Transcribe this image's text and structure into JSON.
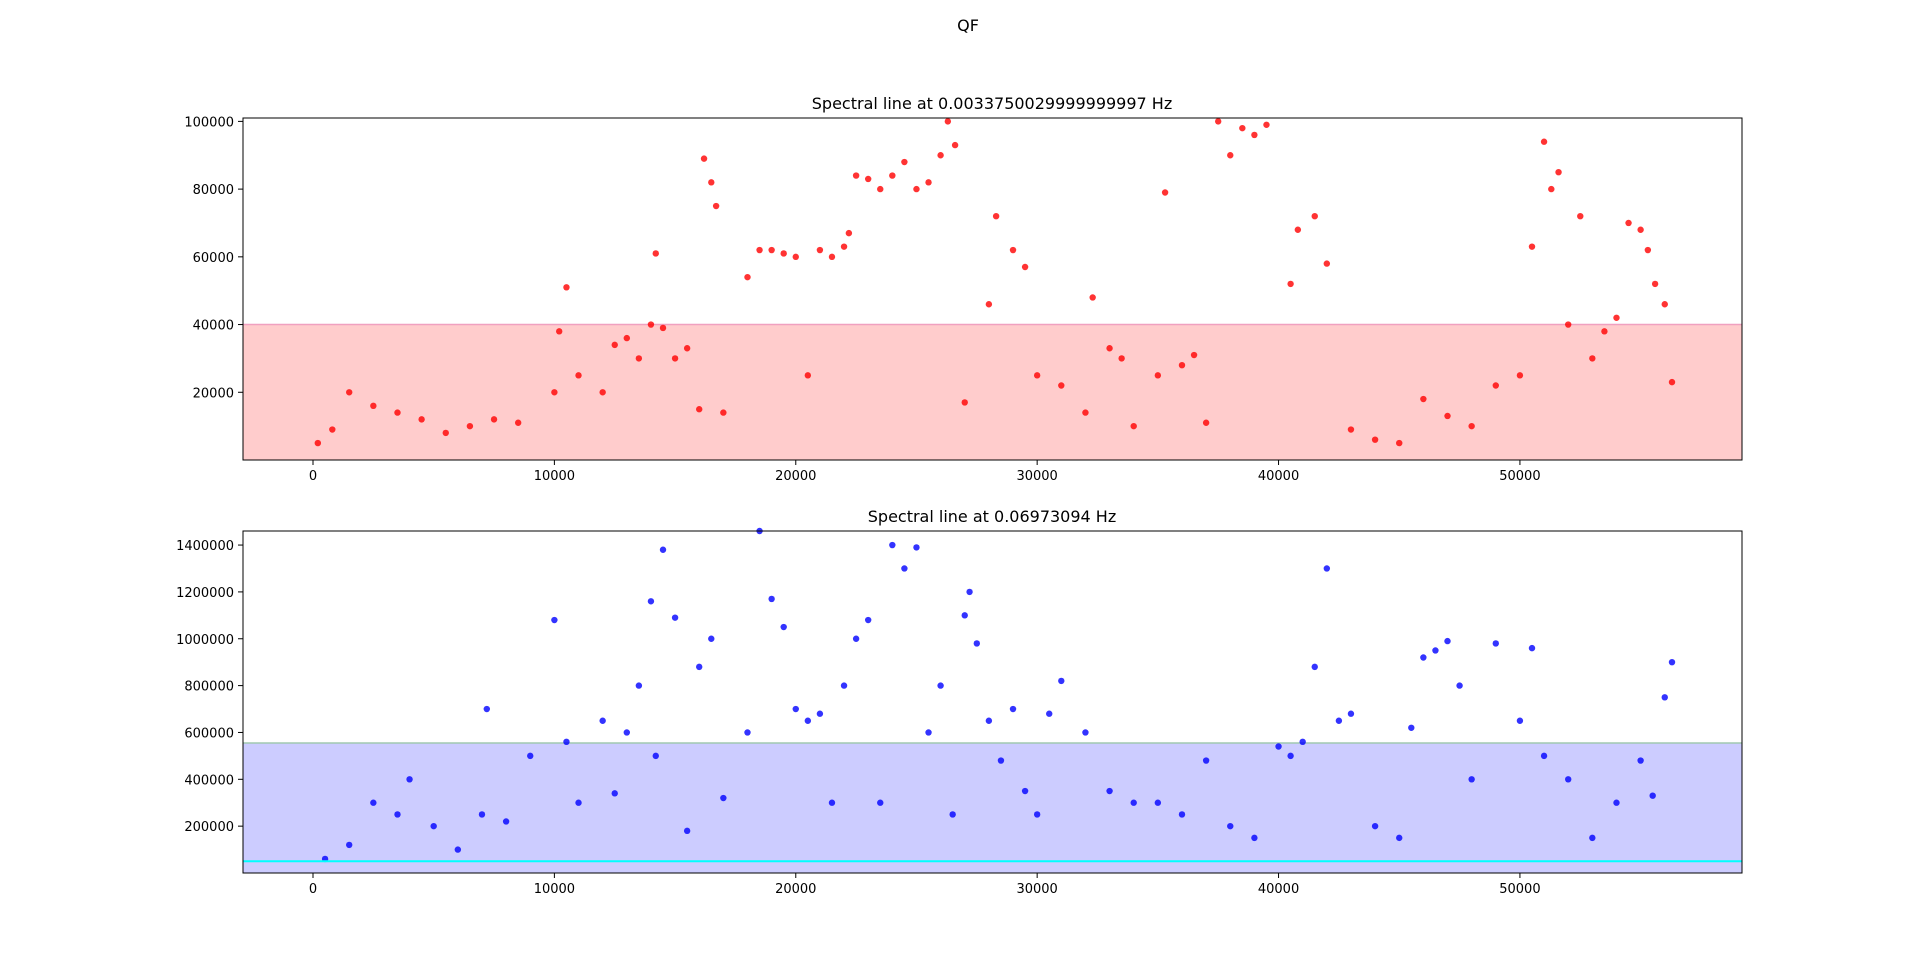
{
  "figure": {
    "suptitle": "QF"
  },
  "chart_data": [
    {
      "type": "scatter",
      "title": "Spectral line at 0.0033750029999999997 Hz",
      "xlabel": "",
      "ylabel": "",
      "xlim": [
        -2900,
        59200
      ],
      "ylim": [
        0,
        101000
      ],
      "xticks": [
        0,
        10000,
        20000,
        30000,
        40000,
        50000
      ],
      "xtick_labels": [
        "0",
        "10000",
        "20000",
        "30000",
        "40000",
        "50000"
      ],
      "yticks": [
        20000,
        40000,
        60000,
        80000,
        100000
      ],
      "ytick_labels": [
        "20000",
        "40000",
        "60000",
        "80000",
        "100000"
      ],
      "point_color": "#ff0000",
      "band": {
        "from": 0,
        "to": 40000,
        "color": "#ffcccc",
        "edge_color": "#f0a0c0"
      },
      "grid": false,
      "series": [
        {
          "x": [
            200,
            800,
            1500,
            2500,
            3500,
            4500,
            5500,
            6500,
            7500,
            8500,
            10000,
            10200,
            10500,
            11000,
            12000,
            12500,
            13000,
            13500,
            14000,
            14200,
            14500,
            15000,
            15500,
            16000,
            16200,
            16500,
            16700,
            17000,
            18000,
            18500,
            19000,
            19500,
            20000,
            20500,
            21000,
            21500,
            22000,
            22200,
            22500,
            23000,
            23500,
            24000,
            24500,
            25000,
            25500,
            26000,
            26300,
            26600,
            27000,
            28000,
            28300,
            29000,
            29500,
            30000,
            31000,
            32000,
            32300,
            33000,
            33500,
            34000,
            35000,
            35300,
            36000,
            36500,
            37000,
            37500,
            38000,
            38500,
            39000,
            39500,
            40500,
            40800,
            41500,
            42000,
            43000,
            44000,
            45000,
            46000,
            47000,
            48000,
            49000,
            50000,
            50500,
            51000,
            51300,
            51600,
            52000,
            52500,
            53000,
            53500,
            54000,
            54500,
            55000,
            55300,
            55600,
            56000,
            56300
          ],
          "y": [
            5000,
            9000,
            20000,
            16000,
            14000,
            12000,
            8000,
            10000,
            12000,
            11000,
            20000,
            38000,
            51000,
            25000,
            20000,
            34000,
            36000,
            30000,
            40000,
            61000,
            39000,
            30000,
            33000,
            15000,
            89000,
            82000,
            75000,
            14000,
            54000,
            62000,
            62000,
            61000,
            60000,
            25000,
            62000,
            60000,
            63000,
            67000,
            84000,
            83000,
            80000,
            84000,
            88000,
            80000,
            82000,
            90000,
            100000,
            93000,
            17000,
            46000,
            72000,
            62000,
            57000,
            25000,
            22000,
            14000,
            48000,
            33000,
            30000,
            10000,
            25000,
            79000,
            28000,
            31000,
            11000,
            100000,
            90000,
            98000,
            96000,
            99000,
            52000,
            68000,
            72000,
            58000,
            9000,
            6000,
            5000,
            18000,
            13000,
            10000,
            22000,
            25000,
            63000,
            94000,
            80000,
            85000,
            40000,
            72000,
            30000,
            38000,
            42000,
            70000,
            68000,
            62000,
            52000,
            46000,
            23000
          ]
        }
      ]
    },
    {
      "type": "scatter",
      "title": "Spectral line at 0.06973094 Hz",
      "xlabel": "",
      "ylabel": "",
      "xlim": [
        -2900,
        59200
      ],
      "ylim": [
        0,
        1460000
      ],
      "xticks": [
        0,
        10000,
        20000,
        30000,
        40000,
        50000
      ],
      "xtick_labels": [
        "0",
        "10000",
        "20000",
        "30000",
        "40000",
        "50000"
      ],
      "yticks": [
        200000,
        400000,
        600000,
        800000,
        1000000,
        1200000,
        1400000
      ],
      "ytick_labels": [
        "200000",
        "400000",
        "600000",
        "800000",
        "1000000",
        "1200000",
        "1400000"
      ],
      "point_color": "#0000ff",
      "band": {
        "from": 0,
        "to": 555000,
        "color": "#ccccff",
        "edge_color": "#a0c8b0"
      },
      "hline": {
        "y": 50000,
        "color": "#00ffff"
      },
      "grid": false,
      "series": [
        {
          "x": [
            500,
            1500,
            2500,
            3500,
            4000,
            5000,
            6000,
            7000,
            7200,
            8000,
            9000,
            10000,
            10500,
            11000,
            12000,
            12500,
            13000,
            13500,
            14000,
            14200,
            14500,
            15000,
            15500,
            16000,
            16500,
            17000,
            18000,
            18500,
            19000,
            19500,
            20000,
            20500,
            21000,
            21500,
            22000,
            22500,
            23000,
            23500,
            24000,
            24500,
            25000,
            25500,
            26000,
            26500,
            27000,
            27200,
            27500,
            28000,
            28500,
            29000,
            29500,
            30000,
            30500,
            31000,
            32000,
            33000,
            34000,
            35000,
            36000,
            37000,
            38000,
            39000,
            40000,
            40500,
            41000,
            41500,
            42000,
            42500,
            43000,
            44000,
            45000,
            45500,
            46000,
            46500,
            47000,
            47500,
            48000,
            49000,
            50000,
            50500,
            51000,
            52000,
            53000,
            54000,
            55000,
            55500,
            56000,
            56300
          ],
          "y": [
            60000,
            120000,
            300000,
            250000,
            400000,
            200000,
            100000,
            250000,
            700000,
            220000,
            500000,
            1080000,
            560000,
            300000,
            650000,
            340000,
            600000,
            800000,
            1160000,
            500000,
            1380000,
            1090000,
            180000,
            880000,
            1000000,
            320000,
            600000,
            1460000,
            1170000,
            1050000,
            700000,
            650000,
            680000,
            300000,
            800000,
            1000000,
            1080000,
            300000,
            1400000,
            1300000,
            1390000,
            600000,
            800000,
            250000,
            1100000,
            1200000,
            980000,
            650000,
            480000,
            700000,
            350000,
            250000,
            680000,
            820000,
            600000,
            350000,
            300000,
            300000,
            250000,
            480000,
            200000,
            150000,
            540000,
            500000,
            560000,
            880000,
            1300000,
            650000,
            680000,
            200000,
            150000,
            620000,
            920000,
            950000,
            990000,
            800000,
            400000,
            980000,
            650000,
            960000,
            500000,
            400000,
            150000,
            300000,
            480000,
            330000,
            750000,
            900000
          ]
        }
      ]
    }
  ]
}
